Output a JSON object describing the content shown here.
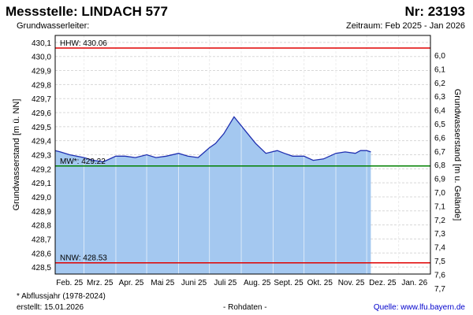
{
  "header": {
    "title": "Messstelle: LINDACH 577",
    "number": "Nr: 23193",
    "subtitle": "Grundwasserleiter:",
    "period": "Zeitraum: Feb 2025 - Jan 2026"
  },
  "footer": {
    "footnote": "* Abflussjahr (1978-2024)",
    "created": "erstellt:  15.01.2026",
    "raw": "- Rohdaten -",
    "source_label": "Quelle:",
    "source_link": "www.lfu.bayern.de"
  },
  "colors": {
    "fill": "#a4c8f0",
    "line": "#1f2fb0",
    "hhw": "#e00000",
    "nnw": "#e00000",
    "mw": "#008000",
    "grid": "#d8d8d8"
  },
  "chart_data": {
    "type": "area",
    "ylabel": "Grundwasserstand [m ü. NN]",
    "ylabel_right": "Grundwasserstand [m u. Gelände]",
    "ylim": [
      428.45,
      430.15
    ],
    "yticks": [
      "430,1",
      "430,0",
      "429,9",
      "429,8",
      "429,7",
      "429,6",
      "429,5",
      "429,4",
      "429,3",
      "429,2",
      "429,1",
      "429,0",
      "428,9",
      "428,8",
      "428,7",
      "428,6",
      "428,5"
    ],
    "yticks_right": [
      "6,0",
      "6,1",
      "6,2",
      "6,3",
      "6,4",
      "6,5",
      "6,6",
      "6,7",
      "6,8",
      "6,9",
      "7,0",
      "7,1",
      "7,2",
      "7,3",
      "7,4",
      "7,5",
      "7,6",
      "7,7"
    ],
    "xticks": [
      "Feb. 25",
      "Mrz. 25",
      "Apr. 25",
      "Mai 25",
      "Juni 25",
      "Juli 25",
      "Aug. 25",
      "Sept. 25",
      "Okt. 25",
      "Nov. 25",
      "Dez. 25",
      "Jan. 26"
    ],
    "grid": true,
    "x": [
      "2025-02-01",
      "2025-02-06",
      "2025-02-15",
      "2025-03-01",
      "2025-03-10",
      "2025-03-20",
      "2025-04-01",
      "2025-04-10",
      "2025-04-20",
      "2025-05-01",
      "2025-05-10",
      "2025-05-20",
      "2025-06-01",
      "2025-06-10",
      "2025-06-20",
      "2025-07-01",
      "2025-07-07",
      "2025-07-15",
      "2025-07-25",
      "2025-08-05",
      "2025-08-15",
      "2025-08-25",
      "2025-09-05",
      "2025-09-12",
      "2025-09-20",
      "2025-10-01",
      "2025-10-10",
      "2025-10-20",
      "2025-11-01",
      "2025-11-10",
      "2025-11-20",
      "2025-11-25",
      "2025-12-01",
      "2025-12-05"
    ],
    "values": [
      429.33,
      429.32,
      429.3,
      429.28,
      429.26,
      429.25,
      429.29,
      429.29,
      429.28,
      429.3,
      429.28,
      429.29,
      429.31,
      429.29,
      429.28,
      429.35,
      429.38,
      429.45,
      429.57,
      429.47,
      429.38,
      429.31,
      429.33,
      429.31,
      429.29,
      429.29,
      429.26,
      429.27,
      429.31,
      429.32,
      429.31,
      429.33,
      429.33,
      429.32
    ],
    "reference_lines": [
      {
        "label": "HHW: 430.06",
        "value": 430.06
      },
      {
        "label": "MW*: 429.22",
        "value": 429.22
      },
      {
        "label": "NNW: 428.53",
        "value": 428.53
      }
    ]
  }
}
